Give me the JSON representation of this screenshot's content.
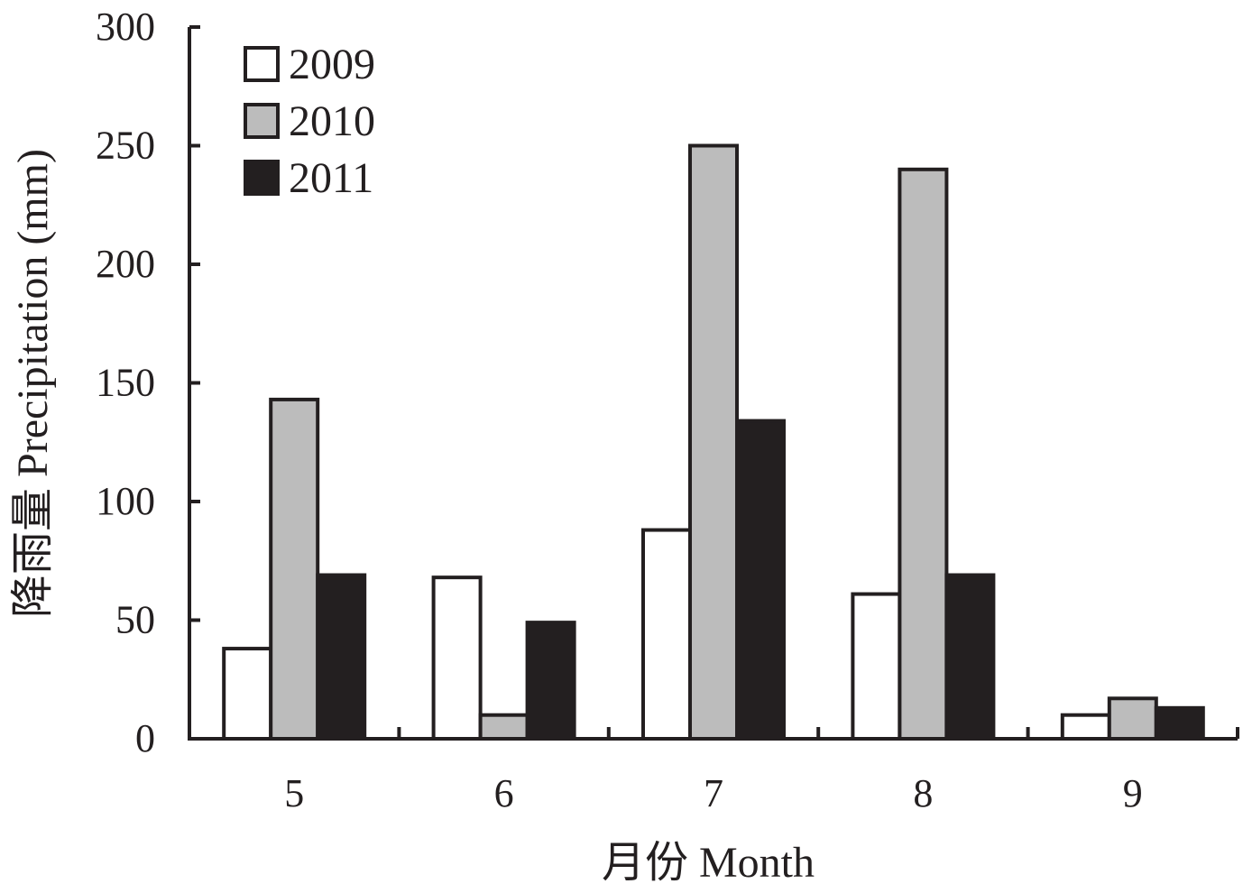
{
  "chart_data": {
    "type": "bar",
    "title": "",
    "xlabel": "月份 Month",
    "ylabel": "降雨量 Precipitation (mm)",
    "categories": [
      "5",
      "6",
      "7",
      "8",
      "9"
    ],
    "series": [
      {
        "name": "2009",
        "values": [
          38,
          68,
          88,
          61,
          10
        ],
        "color": "#ffffff"
      },
      {
        "name": "2010",
        "values": [
          143,
          10,
          250,
          240,
          17
        ],
        "color": "#bcbcbc"
      },
      {
        "name": "2011",
        "values": [
          69,
          49,
          134,
          69,
          13
        ],
        "color": "#231f20"
      }
    ],
    "ylim": [
      0,
      300
    ],
    "yticks": [
      "0",
      "50",
      "100",
      "150",
      "200",
      "250",
      "300"
    ],
    "grid": false,
    "legend_position": "top-left"
  }
}
